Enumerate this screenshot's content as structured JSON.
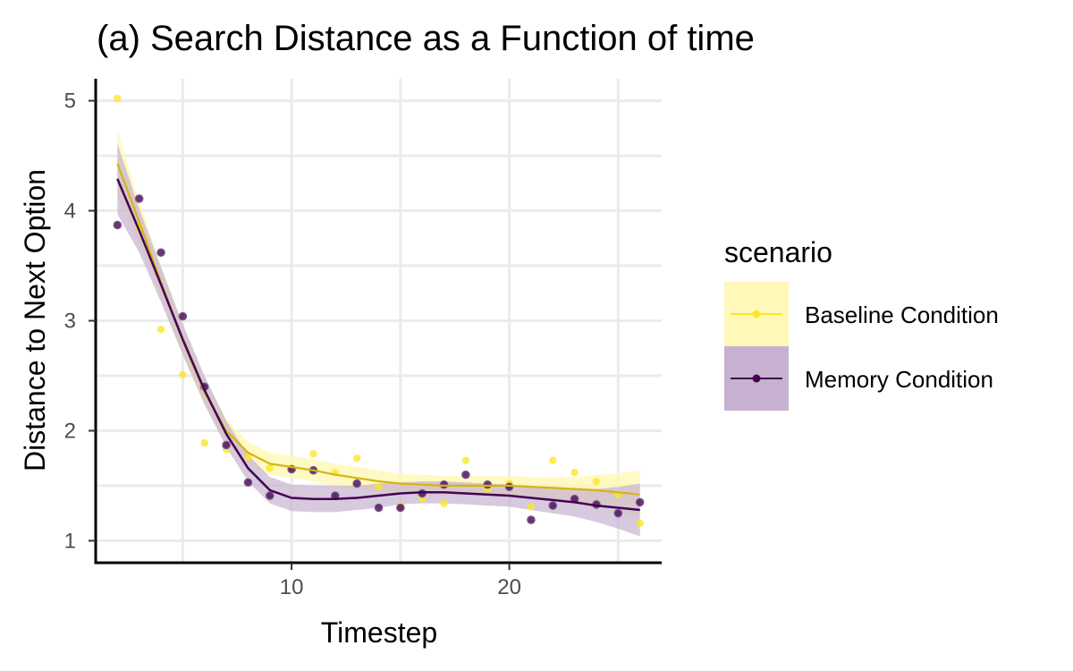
{
  "chart_data": {
    "type": "scatter",
    "title": "(a) Search Distance as a Function of time",
    "xlabel": "Timestep",
    "ylabel": "Distance to Next Option",
    "xlim": [
      1.0,
      27.0
    ],
    "ylim": [
      0.8,
      5.2
    ],
    "x_ticks": [
      10,
      20
    ],
    "y_ticks": [
      1,
      2,
      3,
      4,
      5
    ],
    "x_gridlines_major": [
      5,
      10,
      15,
      20,
      25
    ],
    "y_gridlines_major": [
      1.5,
      2.5,
      3.5,
      4.5
    ],
    "grid": true,
    "legend": {
      "title": "scenario",
      "position": "right"
    },
    "series": [
      {
        "name": "Baseline Condition",
        "color": "#FDE725",
        "fit_color": "#D4B514",
        "ribbon_color": "#FFF7B0",
        "points": [
          [
            2,
            5.02
          ],
          [
            3,
            3.85
          ],
          [
            4,
            2.92
          ],
          [
            5,
            2.51
          ],
          [
            6,
            1.89
          ],
          [
            7,
            1.83
          ],
          [
            8,
            1.76
          ],
          [
            9,
            1.66
          ],
          [
            10,
            1.66
          ],
          [
            11,
            1.79
          ],
          [
            12,
            1.62
          ],
          [
            13,
            1.75
          ],
          [
            14,
            1.49
          ],
          [
            15,
            1.32
          ],
          [
            16,
            1.38
          ],
          [
            17,
            1.34
          ],
          [
            18,
            1.73
          ],
          [
            19,
            1.47
          ],
          [
            20,
            1.52
          ],
          [
            21,
            1.31
          ],
          [
            22,
            1.73
          ],
          [
            23,
            1.62
          ],
          [
            24,
            1.54
          ],
          [
            25,
            1.42
          ],
          [
            26,
            1.16
          ]
        ],
        "fit": [
          [
            2,
            4.43
          ],
          [
            3,
            3.9
          ],
          [
            4,
            3.35
          ],
          [
            5,
            2.82
          ],
          [
            6,
            2.35
          ],
          [
            7,
            2.0
          ],
          [
            8,
            1.8
          ],
          [
            9,
            1.7
          ],
          [
            10,
            1.67
          ],
          [
            11,
            1.64
          ],
          [
            12,
            1.6
          ],
          [
            13,
            1.57
          ],
          [
            14,
            1.54
          ],
          [
            15,
            1.52
          ],
          [
            16,
            1.51
          ],
          [
            17,
            1.5
          ],
          [
            18,
            1.5
          ],
          [
            19,
            1.5
          ],
          [
            20,
            1.5
          ],
          [
            21,
            1.49
          ],
          [
            22,
            1.48
          ],
          [
            23,
            1.47
          ],
          [
            24,
            1.46
          ],
          [
            25,
            1.44
          ],
          [
            26,
            1.42
          ]
        ],
        "ribbon_half_width": [
          0.3,
          0.18,
          0.15,
          0.13,
          0.12,
          0.11,
          0.1,
          0.1,
          0.1,
          0.1,
          0.1,
          0.1,
          0.1,
          0.09,
          0.09,
          0.09,
          0.09,
          0.09,
          0.09,
          0.09,
          0.1,
          0.11,
          0.14,
          0.17,
          0.22
        ]
      },
      {
        "name": "Memory Condition",
        "color": "#440154",
        "fit_color": "#440154",
        "ribbon_color": "#C6B2D0",
        "points": [
          [
            2,
            3.87
          ],
          [
            3,
            4.11
          ],
          [
            4,
            3.62
          ],
          [
            5,
            3.04
          ],
          [
            6,
            2.4
          ],
          [
            7,
            1.87
          ],
          [
            8,
            1.53
          ],
          [
            9,
            1.41
          ],
          [
            10,
            1.65
          ],
          [
            11,
            1.64
          ],
          [
            12,
            1.41
          ],
          [
            13,
            1.52
          ],
          [
            14,
            1.3
          ],
          [
            15,
            1.3
          ],
          [
            16,
            1.43
          ],
          [
            17,
            1.51
          ],
          [
            18,
            1.6
          ],
          [
            19,
            1.51
          ],
          [
            20,
            1.49
          ],
          [
            21,
            1.19
          ],
          [
            22,
            1.32
          ],
          [
            23,
            1.38
          ],
          [
            24,
            1.33
          ],
          [
            25,
            1.25
          ],
          [
            26,
            1.35
          ]
        ],
        "fit": [
          [
            2,
            4.29
          ],
          [
            3,
            3.82
          ],
          [
            4,
            3.33
          ],
          [
            5,
            2.83
          ],
          [
            6,
            2.37
          ],
          [
            7,
            1.97
          ],
          [
            8,
            1.66
          ],
          [
            9,
            1.46
          ],
          [
            10,
            1.39
          ],
          [
            11,
            1.38
          ],
          [
            12,
            1.38
          ],
          [
            13,
            1.39
          ],
          [
            14,
            1.41
          ],
          [
            15,
            1.43
          ],
          [
            16,
            1.44
          ],
          [
            17,
            1.44
          ],
          [
            18,
            1.43
          ],
          [
            19,
            1.42
          ],
          [
            20,
            1.41
          ],
          [
            21,
            1.39
          ],
          [
            22,
            1.37
          ],
          [
            23,
            1.35
          ],
          [
            24,
            1.32
          ],
          [
            25,
            1.3
          ],
          [
            26,
            1.28
          ]
        ],
        "ribbon_half_width": [
          0.32,
          0.2,
          0.16,
          0.14,
          0.13,
          0.12,
          0.12,
          0.12,
          0.12,
          0.12,
          0.12,
          0.11,
          0.11,
          0.1,
          0.1,
          0.1,
          0.1,
          0.1,
          0.1,
          0.11,
          0.12,
          0.13,
          0.15,
          0.19,
          0.24
        ]
      }
    ]
  }
}
